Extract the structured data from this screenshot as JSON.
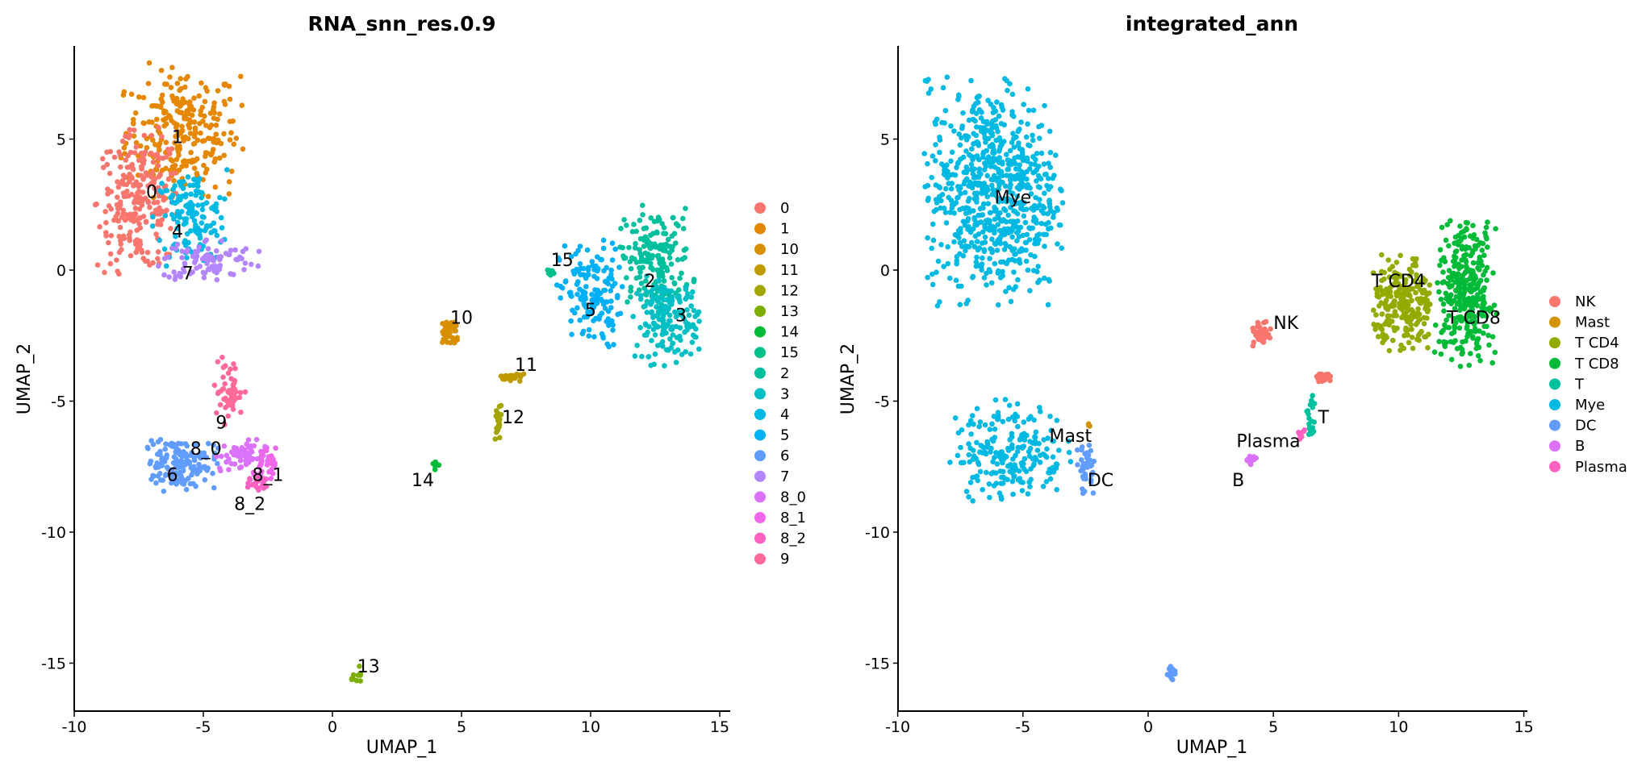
{
  "chart_data": [
    {
      "type": "scatter",
      "title": "RNA_snn_res.0.9",
      "xlabel": "UMAP_1",
      "ylabel": "UMAP_2",
      "xlim": [
        -10,
        15.3
      ],
      "ylim": [
        -16.8,
        8.5
      ],
      "xticks": [
        "-10",
        "-5",
        "0",
        "5",
        "10",
        "15"
      ],
      "xtick_values": [
        -10,
        -5,
        0,
        5,
        10,
        15
      ],
      "yticks": [
        "5",
        "0",
        "-5",
        "-10",
        "-15"
      ],
      "ytick_values": [
        5,
        0,
        -5,
        -10,
        -15
      ],
      "grid": false,
      "legend_position": "right",
      "legend": [
        {
          "label": "0",
          "color": "#F8766D"
        },
        {
          "label": "1",
          "color": "#E58700"
        },
        {
          "label": "10",
          "color": "#D89000"
        },
        {
          "label": "11",
          "color": "#C09B00"
        },
        {
          "label": "12",
          "color": "#A3A500"
        },
        {
          "label": "13",
          "color": "#7CAE00"
        },
        {
          "label": "14",
          "color": "#00BA38"
        },
        {
          "label": "15",
          "color": "#00C08B"
        },
        {
          "label": "2",
          "color": "#00BF9D"
        },
        {
          "label": "3",
          "color": "#00BFC4"
        },
        {
          "label": "4",
          "color": "#00B9E3"
        },
        {
          "label": "5",
          "color": "#00B0F6"
        },
        {
          "label": "6",
          "color": "#619CFF"
        },
        {
          "label": "7",
          "color": "#B385FF"
        },
        {
          "label": "8_0",
          "color": "#DB72FB"
        },
        {
          "label": "8_1",
          "color": "#EF67EB"
        },
        {
          "label": "8_2",
          "color": "#FF61C3"
        },
        {
          "label": "9",
          "color": "#FF6A98"
        }
      ],
      "cluster_labels": [
        {
          "text": "0",
          "x": -7.0,
          "y": 3.0
        },
        {
          "text": "1",
          "x": -6.0,
          "y": 5.1
        },
        {
          "text": "4",
          "x": -6.0,
          "y": 1.5
        },
        {
          "text": "7",
          "x": -5.6,
          "y": -0.1
        },
        {
          "text": "15",
          "x": 8.9,
          "y": 0.4
        },
        {
          "text": "2",
          "x": 12.3,
          "y": -0.4
        },
        {
          "text": "3",
          "x": 13.5,
          "y": -1.7
        },
        {
          "text": "5",
          "x": 10.0,
          "y": -1.5
        },
        {
          "text": "10",
          "x": 5.0,
          "y": -1.8
        },
        {
          "text": "11",
          "x": 7.5,
          "y": -3.6
        },
        {
          "text": "12",
          "x": 7.0,
          "y": -5.6
        },
        {
          "text": "14",
          "x": 3.5,
          "y": -8.0
        },
        {
          "text": "9",
          "x": -4.3,
          "y": -5.8
        },
        {
          "text": "8_0",
          "x": -4.9,
          "y": -6.8
        },
        {
          "text": "6",
          "x": -6.2,
          "y": -7.8
        },
        {
          "text": "8_1",
          "x": -2.5,
          "y": -7.8
        },
        {
          "text": "8_2",
          "x": -3.2,
          "y": -8.9
        },
        {
          "text": "13",
          "x": 1.4,
          "y": -15.1
        }
      ],
      "clusters": [
        {
          "id": "1",
          "cx": -5.8,
          "cy": 5.3,
          "sx": 1.1,
          "sy": 1.2,
          "n": 260,
          "color": "#E58700"
        },
        {
          "id": "0",
          "cx": -7.5,
          "cy": 2.6,
          "sx": 0.8,
          "sy": 1.3,
          "n": 240,
          "color": "#F8766D"
        },
        {
          "id": "4",
          "cx": -5.5,
          "cy": 2.0,
          "sx": 0.7,
          "sy": 0.9,
          "n": 140,
          "color": "#00B9E3"
        },
        {
          "id": "7",
          "cx": -4.8,
          "cy": 0.4,
          "sx": 0.9,
          "sy": 0.4,
          "n": 90,
          "color": "#B385FF"
        },
        {
          "id": "15",
          "cx": 8.4,
          "cy": -0.1,
          "sx": 0.12,
          "sy": 0.08,
          "n": 8,
          "color": "#00C08B"
        },
        {
          "id": "5",
          "cx": 10.0,
          "cy": -1.0,
          "sx": 0.6,
          "sy": 1.0,
          "n": 150,
          "color": "#00B0F6"
        },
        {
          "id": "2",
          "cx": 12.5,
          "cy": 0.5,
          "sx": 0.7,
          "sy": 0.9,
          "n": 170,
          "color": "#00BF9D"
        },
        {
          "id": "3",
          "cx": 13.0,
          "cy": -1.9,
          "sx": 0.6,
          "sy": 0.8,
          "n": 170,
          "color": "#00BFC4"
        },
        {
          "id": "10",
          "cx": 4.5,
          "cy": -2.4,
          "sx": 0.2,
          "sy": 0.25,
          "n": 40,
          "color": "#D89000"
        },
        {
          "id": "11",
          "cx": 7.0,
          "cy": -4.1,
          "sx": 0.25,
          "sy": 0.1,
          "n": 25,
          "color": "#C09B00"
        },
        {
          "id": "12",
          "cx": 6.4,
          "cy": -5.9,
          "sx": 0.08,
          "sy": 0.4,
          "n": 22,
          "color": "#A3A500"
        },
        {
          "id": "14",
          "cx": 4.0,
          "cy": -7.4,
          "sx": 0.07,
          "sy": 0.1,
          "n": 8,
          "color": "#00BA38"
        },
        {
          "id": "6",
          "cx": -5.9,
          "cy": -7.4,
          "sx": 0.7,
          "sy": 0.5,
          "n": 150,
          "color": "#619CFF"
        },
        {
          "id": "8_0",
          "cx": -3.6,
          "cy": -7.1,
          "sx": 0.5,
          "sy": 0.3,
          "n": 55,
          "color": "#DB72FB"
        },
        {
          "id": "8_1",
          "cx": -2.7,
          "cy": -7.6,
          "sx": 0.25,
          "sy": 0.4,
          "n": 30,
          "color": "#EF67EB"
        },
        {
          "id": "8_2",
          "cx": -2.9,
          "cy": -8.2,
          "sx": 0.2,
          "sy": 0.15,
          "n": 20,
          "color": "#FF61C3"
        },
        {
          "id": "9",
          "cx": -4.0,
          "cy": -4.6,
          "sx": 0.3,
          "sy": 0.6,
          "n": 50,
          "color": "#FF6A98"
        },
        {
          "id": "13",
          "cx": 0.95,
          "cy": -15.4,
          "sx": 0.1,
          "sy": 0.15,
          "n": 12,
          "color": "#7CAE00"
        }
      ]
    },
    {
      "type": "scatter",
      "title": "integrated_ann",
      "xlabel": "UMAP_1",
      "ylabel": "UMAP_2",
      "xlim": [
        -10,
        15.3
      ],
      "ylim": [
        -16.8,
        8.5
      ],
      "xticks": [
        "-10",
        "-5",
        "0",
        "5",
        "10",
        "15"
      ],
      "xtick_values": [
        -10,
        -5,
        0,
        5,
        10,
        15
      ],
      "yticks": [
        "5",
        "0",
        "-5",
        "-10",
        "-15"
      ],
      "ytick_values": [
        5,
        0,
        -5,
        -10,
        -15
      ],
      "grid": false,
      "legend_position": "right",
      "legend": [
        {
          "label": "NK",
          "color": "#F8766D"
        },
        {
          "label": "Mast",
          "color": "#D39200"
        },
        {
          "label": "T CD4",
          "color": "#93AA00"
        },
        {
          "label": "T CD8",
          "color": "#00BA38"
        },
        {
          "label": "T",
          "color": "#00C19F"
        },
        {
          "label": "Mye",
          "color": "#00B9E3"
        },
        {
          "label": "DC",
          "color": "#619CFF"
        },
        {
          "label": "B",
          "color": "#DB72FB"
        },
        {
          "label": "Plasma",
          "color": "#FF61C3"
        }
      ],
      "cluster_labels": [
        {
          "text": "Mye",
          "x": -5.4,
          "y": 2.8
        },
        {
          "text": "T CD4",
          "x": 10.0,
          "y": -0.4
        },
        {
          "text": "T CD8",
          "x": 13.0,
          "y": -1.8
        },
        {
          "text": "NK",
          "x": 5.5,
          "y": -2.0
        },
        {
          "text": "T",
          "x": 7.0,
          "y": -5.6
        },
        {
          "text": "Plasma",
          "x": 4.8,
          "y": -6.5
        },
        {
          "text": "B",
          "x": 3.6,
          "y": -8.0
        },
        {
          "text": "Mast",
          "x": -3.1,
          "y": -6.3
        },
        {
          "text": "DC",
          "x": -1.9,
          "y": -8.0
        }
      ],
      "clusters": [
        {
          "id": "Mye",
          "cx": -6.2,
          "cy": 3.0,
          "sx": 1.3,
          "sy": 2.0,
          "n": 720,
          "color": "#00B9E3"
        },
        {
          "id": "Mye",
          "cx": -5.5,
          "cy": -6.9,
          "sx": 1.1,
          "sy": 0.9,
          "n": 220,
          "color": "#00B9E3"
        },
        {
          "id": "T CD4",
          "cx": 10.2,
          "cy": -1.3,
          "sx": 0.6,
          "sy": 0.9,
          "n": 230,
          "color": "#93AA00"
        },
        {
          "id": "T CD8",
          "cx": 12.7,
          "cy": -0.9,
          "sx": 0.6,
          "sy": 1.3,
          "n": 320,
          "color": "#00BA38"
        },
        {
          "id": "NK",
          "cx": 4.5,
          "cy": -2.4,
          "sx": 0.22,
          "sy": 0.25,
          "n": 40,
          "color": "#F8766D"
        },
        {
          "id": "NK",
          "cx": 7.0,
          "cy": -4.1,
          "sx": 0.25,
          "sy": 0.1,
          "n": 20,
          "color": "#F8766D"
        },
        {
          "id": "T",
          "cx": 6.5,
          "cy": -5.8,
          "sx": 0.08,
          "sy": 0.5,
          "n": 22,
          "color": "#00C19F"
        },
        {
          "id": "B",
          "cx": 4.1,
          "cy": -7.3,
          "sx": 0.1,
          "sy": 0.15,
          "n": 12,
          "color": "#DB72FB"
        },
        {
          "id": "Plasma",
          "cx": 6.1,
          "cy": -6.2,
          "sx": 0.1,
          "sy": 0.15,
          "n": 8,
          "color": "#FF61C3"
        },
        {
          "id": "DC",
          "cx": -2.5,
          "cy": -7.6,
          "sx": 0.2,
          "sy": 0.5,
          "n": 40,
          "color": "#619CFF"
        },
        {
          "id": "Mast",
          "cx": -2.4,
          "cy": -5.9,
          "sx": 0.05,
          "sy": 0.05,
          "n": 3,
          "color": "#D39200"
        },
        {
          "id": "DC",
          "cx": 0.95,
          "cy": -15.4,
          "sx": 0.1,
          "sy": 0.15,
          "n": 12,
          "color": "#619CFF"
        }
      ]
    }
  ]
}
